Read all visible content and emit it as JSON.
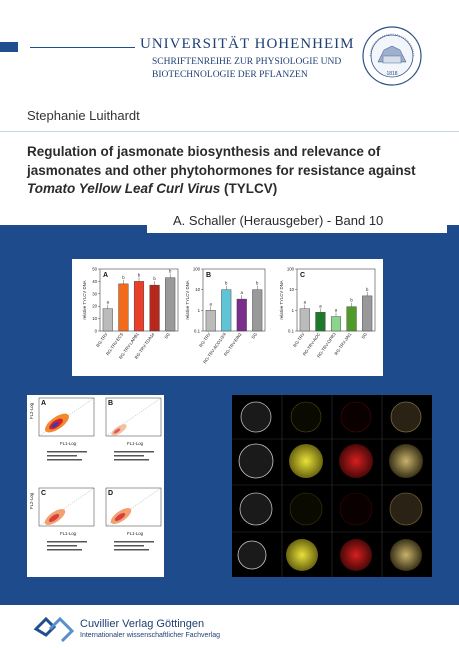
{
  "header": {
    "university": "UNIVERSITÄT HOHENHEIM",
    "series_line1": "SCHRIFTENREIHE ZUR PHYSIOLOGIE UND",
    "series_line2": "BIOTECHNOLOGIE DER PFLANZEN",
    "seal_text": "UNIVERSITÄT HOHENHEIM",
    "seal_year": "1818"
  },
  "author": "Stephanie Luithardt",
  "title": {
    "line1": "Regulation of jasmonate biosynthesis and relevance of",
    "line2": "jasmonates and other phytohormones for resistance against",
    "line3_italic": "Tomato Yellow Leaf Curl Virus",
    "line3_tail": " (TYLCV)"
  },
  "editor": "A. Schaller (Herausgeber) - Band 10",
  "publisher": {
    "name": "Cuvillier Verlag Göttingen",
    "subtitle": "Internationaler wissenschaftlicher Fachverlag"
  },
  "chart_data": [
    {
      "type": "bar",
      "title": "A",
      "ylabel": "relative TYLCV DNA",
      "ylim": [
        0,
        50
      ],
      "categories": [
        "RG-TRV",
        "RG-TRV-ECS",
        "RG-TRV-LAPB1",
        "RG-TRV-TDA1e",
        "SG"
      ],
      "values": [
        18,
        38,
        40,
        37,
        43
      ],
      "letters": [
        "a",
        "b",
        "b",
        "b",
        "b"
      ],
      "colors": [
        "#bbbbbb",
        "#f26a1b",
        "#e8402a",
        "#b8271c",
        "#999999"
      ]
    },
    {
      "type": "bar",
      "title": "B",
      "ylabel": "relative TYLCV DNA",
      "scale": "log",
      "ylim": [
        0.1,
        100
      ],
      "categories": [
        "RG-TRV",
        "RG-TRV-ACO1/2/4",
        "RG-TRV-EIN2",
        "SG"
      ],
      "values": [
        1,
        10,
        3.5,
        10
      ],
      "letters": [
        "a",
        "b",
        "a",
        "b"
      ],
      "colors": [
        "#bbbbbb",
        "#5fc4d6",
        "#7a2d8a",
        "#999999"
      ]
    },
    {
      "type": "bar",
      "title": "C",
      "ylabel": "relative TYLCV DNA",
      "scale": "log",
      "ylim": [
        0.1,
        100
      ],
      "categories": [
        "RG-TRV",
        "RG-TRV-AOC",
        "RG-TRV-OPR3",
        "RG-TRV-JAI1",
        "SG"
      ],
      "values": [
        1.2,
        0.8,
        0.5,
        1.5,
        5
      ],
      "letters": [
        "a",
        "a",
        "a",
        "b",
        "b"
      ],
      "colors": [
        "#bbbbbb",
        "#1e7a2a",
        "#8bd48b",
        "#4f9a28",
        "#999999"
      ]
    }
  ],
  "flow": {
    "panels": [
      "A",
      "B",
      "C",
      "D"
    ],
    "y_axis": "FL2-Log",
    "x_axis": "FL1-Log"
  }
}
